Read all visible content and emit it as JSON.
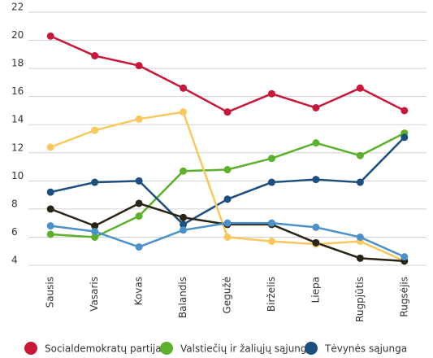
{
  "chart_data": {
    "type": "line",
    "categories": [
      "Sausis",
      "Vasaris",
      "Kovas",
      "Balandis",
      "Gegužė",
      "Birželis",
      "Liepa",
      "Rugpjūtis",
      "Rugsėjis"
    ],
    "series": [
      {
        "name": "Socialdemokratų partija",
        "color": "#c8183a",
        "values": [
          20.3,
          18.9,
          18.2,
          16.6,
          14.9,
          16.2,
          15.2,
          16.6,
          15.0
        ]
      },
      {
        "name": "Valstiečių ir žaliųjų sąjunga",
        "color": "#5cb02a",
        "values": [
          6.2,
          6.0,
          7.5,
          10.7,
          10.8,
          11.6,
          12.7,
          11.8,
          13.4
        ]
      },
      {
        "name": "Tėvynės sąjunga",
        "color": "#1d4f7e",
        "values": [
          9.2,
          9.9,
          10.0,
          6.9,
          8.7,
          9.9,
          10.1,
          9.9,
          13.1
        ]
      },
      {
        "color": "#f9c75c",
        "values": [
          12.4,
          13.6,
          14.4,
          14.9,
          6.0,
          5.7,
          5.5,
          5.7,
          4.3
        ]
      },
      {
        "color": "#2a2416",
        "values": [
          8.0,
          6.8,
          8.4,
          7.4,
          6.9,
          6.9,
          5.6,
          4.5,
          4.3
        ]
      },
      {
        "color": "#4a92c9",
        "values": [
          6.8,
          6.4,
          5.3,
          6.5,
          7.0,
          7.0,
          6.7,
          6.0,
          4.6
        ]
      }
    ],
    "ylim": [
      4,
      22
    ],
    "yticks": [
      4,
      6,
      8,
      10,
      12,
      14,
      16,
      18,
      20,
      22
    ],
    "grid": true,
    "legend": "bottom"
  }
}
